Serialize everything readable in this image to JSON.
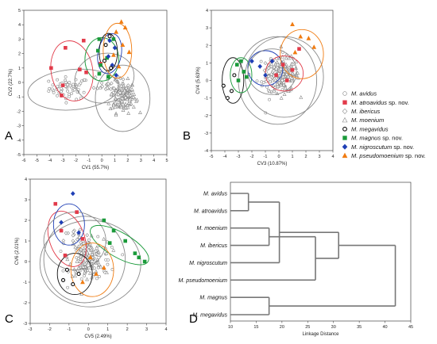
{
  "panel_labels": {
    "A": "A",
    "B": "B",
    "C": "C",
    "D": "D"
  },
  "legend": [
    {
      "species": "M. avidus",
      "suffix": "",
      "marker": "circle-open",
      "color": "#888888"
    },
    {
      "species": "M. atroavidus",
      "suffix": " sp. nov.",
      "marker": "square",
      "color": "#e23b4a"
    },
    {
      "species": "M. ibericus",
      "suffix": "",
      "marker": "diamond-open",
      "color": "#888888"
    },
    {
      "species": "M. moenium",
      "suffix": "",
      "marker": "triangle-open",
      "color": "#888888"
    },
    {
      "species": "M. megavidus",
      "suffix": "",
      "marker": "circle-open-bold",
      "color": "#111111"
    },
    {
      "species": "M. magnus",
      "suffix": " sp. nov.",
      "marker": "square",
      "color": "#1a9a3a"
    },
    {
      "species": "M. nigroscutum",
      "suffix": " sp. nov.",
      "marker": "diamond",
      "color": "#1f3fb5"
    },
    {
      "species": "M. pseudomoenium",
      "suffix": " sp. nov.",
      "marker": "triangle",
      "color": "#f07c12"
    }
  ],
  "chart_data": [
    {
      "panel": "A",
      "type": "scatter",
      "xlabel": "CV1 (55.7%)",
      "ylabel": "CV2 (22.7%)",
      "xlim": [
        -6,
        5
      ],
      "ylim": [
        -5,
        5
      ],
      "xticks": [
        -6,
        -5,
        -4,
        -3,
        -2,
        -1,
        0,
        1,
        2,
        3,
        4,
        5
      ],
      "yticks": [
        -5,
        -4,
        -3,
        -2,
        -1,
        0,
        1,
        2,
        3,
        4,
        5
      ],
      "ellipses": [
        {
          "group": "M. avidus",
          "cx": -2.2,
          "cy": -0.5,
          "rx": 3.5,
          "ry": 1.4,
          "angle": 5
        },
        {
          "group": "M. atroavidus",
          "cx": -2.3,
          "cy": 0.8,
          "rx": 1.6,
          "ry": 2.1,
          "angle": 10
        },
        {
          "group": "M. moenium",
          "cx": 1.6,
          "cy": -1.1,
          "rx": 2.1,
          "ry": 2.3,
          "angle": 0
        },
        {
          "group": "M. ibericus",
          "cx": 0.2,
          "cy": 0.3,
          "rx": 2.3,
          "ry": 1.7,
          "angle": 15
        },
        {
          "group": "M. magnus",
          "cx": 0.0,
          "cy": 1.6,
          "rx": 1.3,
          "ry": 1.5,
          "angle": 0
        },
        {
          "group": "M. nigroscutum",
          "cx": 0.6,
          "cy": 2.0,
          "rx": 0.9,
          "ry": 1.4,
          "angle": -10
        },
        {
          "group": "M. megavidus",
          "cx": 0.5,
          "cy": 2.1,
          "rx": 0.7,
          "ry": 1.3,
          "angle": 0
        },
        {
          "group": "M. pseudomoenium",
          "cx": 1.2,
          "cy": 2.2,
          "rx": 1.1,
          "ry": 1.9,
          "angle": 0
        }
      ],
      "points": [
        {
          "group": "M. atroavidus",
          "x": -1.4,
          "y": 2.9
        },
        {
          "group": "M. atroavidus",
          "x": -2.8,
          "y": 2.4
        },
        {
          "group": "M. atroavidus",
          "x": -3.9,
          "y": 1.0
        },
        {
          "group": "M. atroavidus",
          "x": -1.7,
          "y": 0.9
        },
        {
          "group": "M. atroavidus",
          "x": -1.2,
          "y": 0.7
        },
        {
          "group": "M. atroavidus",
          "x": -3.0,
          "y": -0.2
        },
        {
          "group": "M. atroavidus",
          "x": -3.1,
          "y": -0.9
        },
        {
          "group": "M. atroavidus",
          "x": -0.1,
          "y": 1.3
        },
        {
          "group": "M. magnus",
          "x": -0.2,
          "y": 3.0
        },
        {
          "group": "M. magnus",
          "x": 0.9,
          "y": 3.0
        },
        {
          "group": "M. magnus",
          "x": -0.3,
          "y": 2.2
        },
        {
          "group": "M. magnus",
          "x": 0.4,
          "y": 1.7
        },
        {
          "group": "M. magnus",
          "x": -0.1,
          "y": 1.2
        },
        {
          "group": "M. magnus",
          "x": -0.2,
          "y": 0.6
        },
        {
          "group": "M. magnus",
          "x": 0.5,
          "y": 0.4
        },
        {
          "group": "M. pseudomoenium",
          "x": 1.5,
          "y": 4.2
        },
        {
          "group": "M. pseudomoenium",
          "x": 1.8,
          "y": 3.8
        },
        {
          "group": "M. pseudomoenium",
          "x": 1.1,
          "y": 3.5
        },
        {
          "group": "M. pseudomoenium",
          "x": 1.6,
          "y": 2.6
        },
        {
          "group": "M. pseudomoenium",
          "x": 2.1,
          "y": 2.1
        },
        {
          "group": "M. pseudomoenium",
          "x": 0.9,
          "y": 1.9
        },
        {
          "group": "M. pseudomoenium",
          "x": 1.3,
          "y": 1.1
        },
        {
          "group": "M. nigroscutum",
          "x": 0.6,
          "y": 2.9
        },
        {
          "group": "M. nigroscutum",
          "x": 1.0,
          "y": 2.4
        },
        {
          "group": "M. nigroscutum",
          "x": 0.5,
          "y": 1.8
        },
        {
          "group": "M. nigroscutum",
          "x": 0.8,
          "y": 1.2
        },
        {
          "group": "M. nigroscutum",
          "x": 1.1,
          "y": 0.5
        },
        {
          "group": "M. megavidus",
          "x": 0.3,
          "y": 2.6
        },
        {
          "group": "M. megavidus",
          "x": 0.6,
          "y": 3.2
        },
        {
          "group": "M. megavidus",
          "x": 0.2,
          "y": 1.5
        },
        {
          "group": "M. megavidus",
          "x": 0.7,
          "y": 1.0
        }
      ],
      "clouds": [
        {
          "group": "M. avidus",
          "cx": -2.5,
          "cy": -0.4,
          "sx": 1.4,
          "sy": 0.7,
          "n": 60
        },
        {
          "group": "M. moenium",
          "cx": 1.6,
          "cy": -1.0,
          "sx": 0.9,
          "sy": 1.0,
          "n": 140
        },
        {
          "group": "M. ibericus",
          "cx": 0.5,
          "cy": -0.1,
          "sx": 1.0,
          "sy": 0.7,
          "n": 25
        }
      ]
    },
    {
      "panel": "B",
      "type": "scatter",
      "xlabel": "CV3 (10.87%)",
      "ylabel": "CV4 (5.63%)",
      "xlim": [
        -5,
        4
      ],
      "ylim": [
        -4,
        4
      ],
      "xticks": [
        -5,
        -4,
        -3,
        -2,
        -1,
        0,
        1,
        2,
        3,
        4
      ],
      "yticks": [
        -4,
        -3,
        -2,
        -1,
        0,
        1,
        2,
        3,
        4
      ],
      "ellipses": [
        {
          "group": "M. avidus",
          "cx": -0.1,
          "cy": 0.0,
          "rx": 2.9,
          "ry": 2.5,
          "angle": 0
        },
        {
          "group": "M. moenium",
          "cx": 0.4,
          "cy": 0.2,
          "rx": 2.9,
          "ry": 2.3,
          "angle": 0
        },
        {
          "group": "M. megavidus",
          "cx": -3.4,
          "cy": 0.0,
          "rx": 0.8,
          "ry": 1.3,
          "angle": 0
        },
        {
          "group": "M. magnus",
          "cx": -2.8,
          "cy": 0.3,
          "rx": 0.8,
          "ry": 1.0,
          "angle": 0
        },
        {
          "group": "M. nigroscutum",
          "cx": -1.0,
          "cy": 0.7,
          "rx": 1.3,
          "ry": 1.0,
          "angle": 0
        },
        {
          "group": "M. ibericus",
          "cx": -0.5,
          "cy": 0.5,
          "rx": 1.8,
          "ry": 1.3,
          "angle": 0
        },
        {
          "group": "M. atroavidus",
          "cx": 0.4,
          "cy": 0.4,
          "rx": 1.4,
          "ry": 1.0,
          "angle": 0
        },
        {
          "group": "M. pseudomoenium",
          "cx": 1.7,
          "cy": 1.5,
          "rx": 1.6,
          "ry": 1.4,
          "angle": 0
        }
      ],
      "points": [
        {
          "group": "M. megavidus",
          "x": -4.1,
          "y": -0.3
        },
        {
          "group": "M. megavidus",
          "x": -3.8,
          "y": -1.0
        },
        {
          "group": "M. megavidus",
          "x": -3.3,
          "y": 0.3
        },
        {
          "group": "M. megavidus",
          "x": -3.5,
          "y": -0.6
        },
        {
          "group": "M. magnus",
          "x": -3.1,
          "y": 0.9
        },
        {
          "group": "M. magnus",
          "x": -2.6,
          "y": 0.5
        },
        {
          "group": "M. magnus",
          "x": -3.0,
          "y": 0.0
        },
        {
          "group": "M. magnus",
          "x": -2.4,
          "y": 0.2
        },
        {
          "group": "M. magnus",
          "x": -2.8,
          "y": 1.1
        },
        {
          "group": "M. nigroscutum",
          "x": -2.0,
          "y": 1.1
        },
        {
          "group": "M. nigroscutum",
          "x": -1.4,
          "y": 0.8
        },
        {
          "group": "M. nigroscutum",
          "x": -1.0,
          "y": 0.3
        },
        {
          "group": "M. nigroscutum",
          "x": -0.5,
          "y": 1.1
        },
        {
          "group": "M. atroavidus",
          "x": 0.3,
          "y": 0.9
        },
        {
          "group": "M. atroavidus",
          "x": -0.2,
          "y": 0.3
        },
        {
          "group": "M. atroavidus",
          "x": 0.6,
          "y": 0.0
        },
        {
          "group": "M. atroavidus",
          "x": 1.0,
          "y": 0.6
        },
        {
          "group": "M. atroavidus",
          "x": 1.5,
          "y": 1.8
        },
        {
          "group": "M. pseudomoenium",
          "x": 1.0,
          "y": 3.2
        },
        {
          "group": "M. pseudomoenium",
          "x": 1.6,
          "y": 2.5
        },
        {
          "group": "M. pseudomoenium",
          "x": 2.2,
          "y": 2.4
        },
        {
          "group": "M. pseudomoenium",
          "x": 2.6,
          "y": 1.9
        },
        {
          "group": "M. pseudomoenium",
          "x": 1.2,
          "y": 1.6
        }
      ],
      "clouds": [
        {
          "group": "M. avidus",
          "cx": -0.3,
          "cy": 0.2,
          "sx": 1.2,
          "sy": 1.1,
          "n": 50
        },
        {
          "group": "M. moenium",
          "cx": 0.4,
          "cy": 0.3,
          "sx": 1.0,
          "sy": 0.9,
          "n": 120
        },
        {
          "group": "M. ibericus",
          "cx": -0.4,
          "cy": 0.5,
          "sx": 0.8,
          "sy": 0.6,
          "n": 20
        }
      ]
    },
    {
      "panel": "C",
      "type": "scatter",
      "xlabel": "CV5 (2.49%)",
      "ylabel": "CV6 (2.01%)",
      "xlim": [
        -3,
        4
      ],
      "ylim": [
        -3,
        4
      ],
      "xticks": [
        -3,
        -2,
        -1,
        0,
        1,
        2,
        3,
        4
      ],
      "yticks": [
        -3,
        -2,
        -1,
        0,
        1,
        2,
        3,
        4
      ],
      "ellipses": [
        {
          "group": "M. avidus",
          "cx": 0.1,
          "cy": -0.1,
          "rx": 2.6,
          "ry": 2.1,
          "angle": 0
        },
        {
          "group": "M. moenium",
          "cx": -0.2,
          "cy": 0.1,
          "rx": 2.1,
          "ry": 2.1,
          "angle": 0
        },
        {
          "group": "M. atroavidus",
          "cx": -1.1,
          "cy": 1.1,
          "rx": 0.9,
          "ry": 1.4,
          "angle": 20
        },
        {
          "group": "M. nigroscutum",
          "cx": -1.0,
          "cy": 1.8,
          "rx": 0.8,
          "ry": 1.0,
          "angle": 0
        },
        {
          "group": "M. ibericus",
          "cx": -0.7,
          "cy": 1.0,
          "rx": 1.6,
          "ry": 1.4,
          "angle": 0
        },
        {
          "group": "M. magnus",
          "cx": 1.6,
          "cy": 0.8,
          "rx": 1.7,
          "ry": 0.6,
          "angle": -30
        },
        {
          "group": "M. megavidus",
          "cx": -0.7,
          "cy": -0.6,
          "rx": 0.9,
          "ry": 1.0,
          "angle": 0
        },
        {
          "group": "M. pseudomoenium",
          "cx": 0.2,
          "cy": -0.4,
          "rx": 1.1,
          "ry": 1.3,
          "angle": 0
        }
      ],
      "points": [
        {
          "group": "M. atroavidus",
          "x": -1.7,
          "y": 2.8
        },
        {
          "group": "M. atroavidus",
          "x": -1.4,
          "y": 1.5
        },
        {
          "group": "M. atroavidus",
          "x": -0.6,
          "y": 2.4
        },
        {
          "group": "M. atroavidus",
          "x": -0.3,
          "y": 1.1
        },
        {
          "group": "M. atroavidus",
          "x": -1.2,
          "y": 0.3
        },
        {
          "group": "M. nigroscutum",
          "x": -0.8,
          "y": 3.3
        },
        {
          "group": "M. nigroscutum",
          "x": -1.4,
          "y": 1.9
        },
        {
          "group": "M. nigroscutum",
          "x": -0.5,
          "y": 1.4
        },
        {
          "group": "M. magnus",
          "x": 0.8,
          "y": 2.0
        },
        {
          "group": "M. magnus",
          "x": 1.3,
          "y": 1.5
        },
        {
          "group": "M. magnus",
          "x": 1.9,
          "y": 1.0
        },
        {
          "group": "M. magnus",
          "x": 2.4,
          "y": 0.4
        },
        {
          "group": "M. magnus",
          "x": 2.9,
          "y": 0.0
        },
        {
          "group": "M. magnus",
          "x": 2.6,
          "y": 0.2
        },
        {
          "group": "M. magnus",
          "x": 1.1,
          "y": 0.9
        },
        {
          "group": "M. pseudomoenium",
          "x": 0.1,
          "y": 0.2
        },
        {
          "group": "M. pseudomoenium",
          "x": 0.4,
          "y": -0.6
        },
        {
          "group": "M. pseudomoenium",
          "x": -0.3,
          "y": -1.0
        },
        {
          "group": "M. pseudomoenium",
          "x": 0.8,
          "y": -0.3
        },
        {
          "group": "M. megavidus",
          "x": -1.1,
          "y": -0.4
        },
        {
          "group": "M. megavidus",
          "x": -0.8,
          "y": -1.1
        },
        {
          "group": "M. megavidus",
          "x": -0.5,
          "y": -0.6
        },
        {
          "group": "M. megavidus",
          "x": -1.3,
          "y": -0.9
        }
      ],
      "clouds": [
        {
          "group": "M. avidus",
          "cx": 0.3,
          "cy": 0.0,
          "sx": 1.1,
          "sy": 0.9,
          "n": 60
        },
        {
          "group": "M. moenium",
          "cx": -0.1,
          "cy": 0.2,
          "sx": 0.8,
          "sy": 0.8,
          "n": 110
        },
        {
          "group": "M. ibericus",
          "cx": -0.6,
          "cy": 1.0,
          "sx": 0.6,
          "sy": 0.6,
          "n": 20
        }
      ]
    },
    {
      "panel": "D",
      "type": "dendrogram",
      "xlabel": "Linkage Distance",
      "xlim": [
        10,
        45
      ],
      "xticks": [
        10,
        15,
        20,
        25,
        30,
        35,
        40,
        45
      ],
      "leaves": [
        "M. avidus",
        "M. atroavidus",
        "M. moenium",
        "M. ibericus",
        "M. nigroscutum",
        "M. pseudomoenium",
        "M. magnus",
        "M. megavidus"
      ],
      "merges": [
        {
          "a": 0,
          "b": 1,
          "height": 13.5
        },
        {
          "a": 2,
          "b": 3,
          "height": 17.5
        },
        {
          "a": 8,
          "b": 4,
          "height": 19.5
        },
        {
          "a": 9,
          "b": 5,
          "height": 26.5
        },
        {
          "a": 6,
          "b": 7,
          "height": 17.5
        },
        {
          "a": 10,
          "b": 11,
          "height": 31.0
        },
        {
          "a": 12,
          "b": 13,
          "height": 42.0
        }
      ]
    }
  ]
}
